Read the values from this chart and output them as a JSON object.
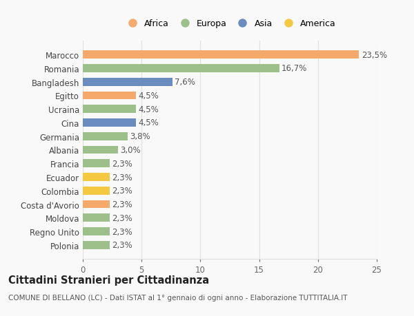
{
  "countries": [
    "Marocco",
    "Romania",
    "Bangladesh",
    "Egitto",
    "Ucraina",
    "Cina",
    "Germania",
    "Albania",
    "Francia",
    "Ecuador",
    "Colombia",
    "Costa d'Avorio",
    "Moldova",
    "Regno Unito",
    "Polonia"
  ],
  "values": [
    23.5,
    16.7,
    7.6,
    4.5,
    4.5,
    4.5,
    3.8,
    3.0,
    2.3,
    2.3,
    2.3,
    2.3,
    2.3,
    2.3,
    2.3
  ],
  "labels": [
    "23,5%",
    "16,7%",
    "7,6%",
    "4,5%",
    "4,5%",
    "4,5%",
    "3,8%",
    "3,0%",
    "2,3%",
    "2,3%",
    "2,3%",
    "2,3%",
    "2,3%",
    "2,3%",
    "2,3%"
  ],
  "colors": [
    "#F5A96B",
    "#9DC08B",
    "#6B8CBE",
    "#F5A96B",
    "#9DC08B",
    "#6B8CBE",
    "#9DC08B",
    "#9DC08B",
    "#9DC08B",
    "#F5C842",
    "#F5C842",
    "#F5A96B",
    "#9DC08B",
    "#9DC08B",
    "#9DC08B"
  ],
  "legend_labels": [
    "Africa",
    "Europa",
    "Asia",
    "America"
  ],
  "legend_colors": [
    "#F5A96B",
    "#9DC08B",
    "#6B8CBE",
    "#F5C842"
  ],
  "title": "Cittadini Stranieri per Cittadinanza",
  "subtitle": "COMUNE DI BELLANO (LC) - Dati ISTAT al 1° gennaio di ogni anno - Elaborazione TUTTITALIA.IT",
  "xlim": [
    0,
    25
  ],
  "xticks": [
    0,
    5,
    10,
    15,
    20,
    25
  ],
  "background_color": "#f9f9f9",
  "grid_color": "#e0e0e0",
  "bar_height": 0.6,
  "label_fontsize": 8.5,
  "tick_fontsize": 8.5,
  "title_fontsize": 10.5,
  "subtitle_fontsize": 7.5
}
